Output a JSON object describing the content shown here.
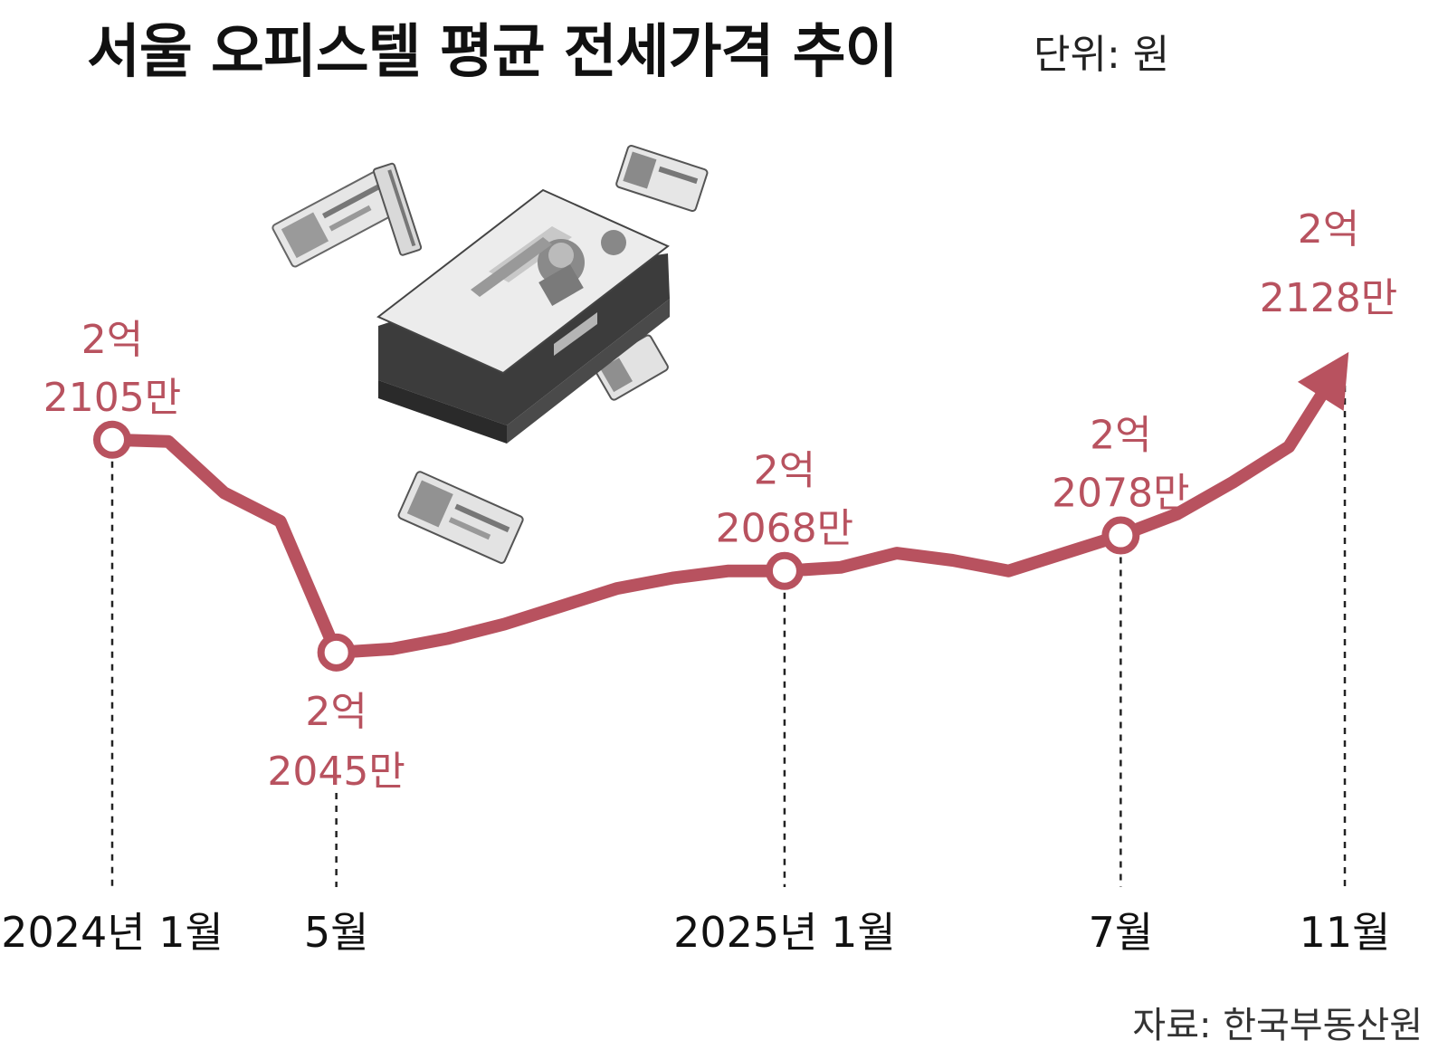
{
  "title": "서울 오피스텔 평균 전세가격 추이",
  "unit": "단위: 원",
  "source": "자료: 한국부동산원",
  "colors": {
    "line": "#b8525f",
    "label": "#b8525f",
    "text": "#111111"
  },
  "decoration": {
    "image": "korean-50000-won-banknotes"
  },
  "chart_data": {
    "type": "line",
    "title": "서울 오피스텔 평균 전세가격 추이",
    "unit": "원",
    "x": [
      "2024-01",
      "2024-02",
      "2024-03",
      "2024-04",
      "2024-05",
      "2024-06",
      "2024-07",
      "2024-08",
      "2024-09",
      "2024-10",
      "2024-11",
      "2024-12",
      "2025-01",
      "2025-02",
      "2025-03",
      "2025-04",
      "2025-05",
      "2025-06",
      "2025-07",
      "2025-08",
      "2025-09",
      "2025-10",
      "2025-11"
    ],
    "values": [
      210500000,
      210450000,
      209000000,
      208200000,
      204500000,
      204600000,
      204900000,
      205300000,
      205800000,
      206300000,
      206600000,
      206800000,
      206800000,
      206900000,
      207300000,
      207100000,
      206800000,
      207300000,
      207800000,
      208400000,
      209300000,
      210300000,
      212800000
    ],
    "ylim": [
      203500000,
      213200000
    ],
    "xtick_labels": [
      {
        "month": "2024-01",
        "label": "2024년 1월"
      },
      {
        "month": "2024-05",
        "label": "5월"
      },
      {
        "month": "2025-01",
        "label": "2025년 1월"
      },
      {
        "month": "2025-07",
        "label": "7월"
      },
      {
        "month": "2025-11",
        "label": "11월"
      }
    ],
    "annotations": [
      {
        "month": "2024-01",
        "value": 210500000,
        "line1": "2억",
        "line2": "2105만",
        "placement": "above"
      },
      {
        "month": "2024-05",
        "value": 204500000,
        "line1": "2억",
        "line2": "2045만",
        "placement": "below"
      },
      {
        "month": "2025-01",
        "value": 206800000,
        "line1": "2억",
        "line2": "2068만",
        "placement": "above"
      },
      {
        "month": "2025-07",
        "value": 207800000,
        "line1": "2억",
        "line2": "2078만",
        "placement": "above"
      },
      {
        "month": "2025-11",
        "value": 212800000,
        "line1": "2억",
        "line2": "2128만",
        "placement": "above-arrow"
      }
    ],
    "markers": [
      "2024-01",
      "2024-05",
      "2025-01",
      "2025-07"
    ],
    "end_marker": "arrow",
    "grid": false,
    "legend": "none"
  }
}
